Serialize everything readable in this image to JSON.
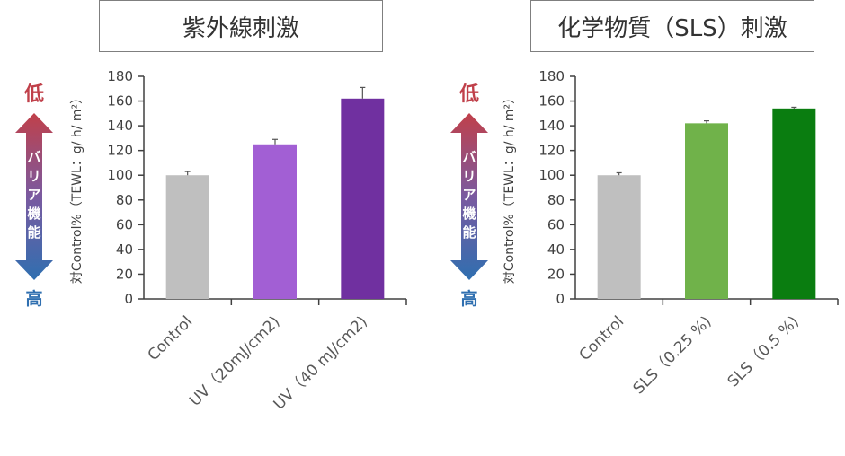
{
  "panels": [
    {
      "title": "紫外線刺激"
    },
    {
      "title": "化学物質（SLS）刺激"
    }
  ],
  "legend_arrow": {
    "top": "低",
    "middle_chars": [
      "バ",
      "リ",
      "ア",
      "機",
      "能"
    ],
    "bottom": "高"
  },
  "colors": {
    "red": "#c0404a",
    "blue": "#2f6fb0",
    "axis": "#404040"
  },
  "chart_data": [
    {
      "type": "bar",
      "title": "紫外線刺激",
      "ylabel": "対Control%（TEWL：g/ h/ m²）",
      "ylim": [
        0,
        180
      ],
      "yticks": [
        "0",
        "20",
        "40",
        "60",
        "80",
        "100",
        "120",
        "140",
        "160",
        "180"
      ],
      "categories": [
        "Control",
        "UV（20mJ/cm2)",
        "UV（40 mJ/cm2)"
      ],
      "values": [
        100,
        125,
        162
      ],
      "errors": [
        3,
        4,
        9
      ],
      "colors": [
        "#bfbfbf",
        "#a25fd4",
        "#7030a0"
      ]
    },
    {
      "type": "bar",
      "title": "化学物質（SLS）刺激",
      "ylabel": "対Control%（TEWL：g/ h/ m²）",
      "ylim": [
        0,
        180
      ],
      "yticks": [
        "0",
        "20",
        "40",
        "60",
        "80",
        "100",
        "120",
        "140",
        "160",
        "180"
      ],
      "categories": [
        "Control",
        "SLS（0.25 %)",
        "SLS（0.5 %)"
      ],
      "values": [
        100,
        142,
        154
      ],
      "errors": [
        2,
        2,
        1
      ],
      "colors": [
        "#bfbfbf",
        "#70b24a",
        "#0a7d10"
      ]
    }
  ]
}
